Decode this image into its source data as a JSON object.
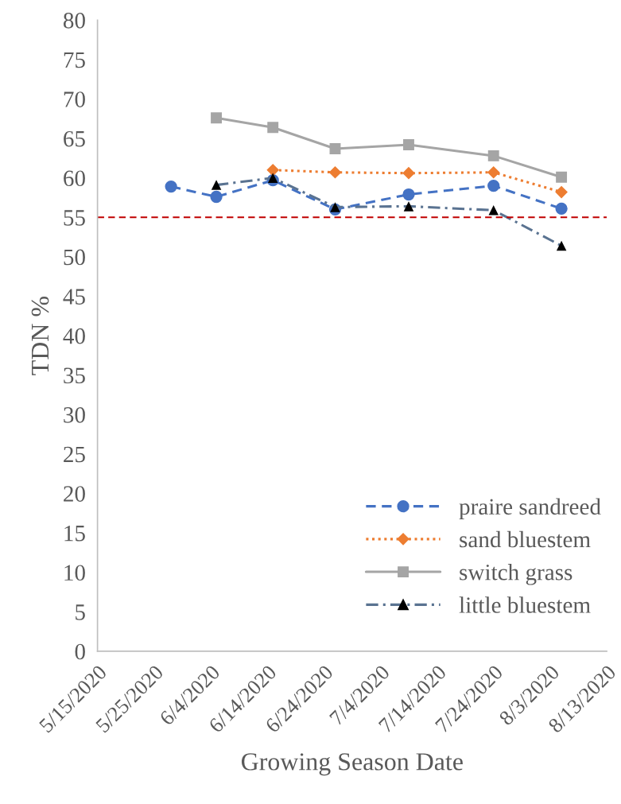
{
  "chart_data": {
    "type": "line",
    "xlabel": "Growing Season Date",
    "ylabel": "TDN %",
    "series": [
      {
        "name": "praire sandreed",
        "color": "#4472c4",
        "marker": "circle",
        "line_style": "dashed",
        "x": [
          "2020-05-28",
          "2020-06-05",
          "2020-06-15",
          "2020-06-26",
          "2020-07-09",
          "2020-07-24",
          "2020-08-05"
        ],
        "values": [
          58.9,
          57.6,
          59.7,
          56.0,
          57.9,
          59.0,
          56.1
        ]
      },
      {
        "name": "sand bluestem",
        "color": "#ed7d31",
        "marker": "diamond",
        "line_style": "dotted",
        "x": [
          "2020-06-15",
          "2020-06-26",
          "2020-07-09",
          "2020-07-24",
          "2020-08-05"
        ],
        "values": [
          61.0,
          60.7,
          60.6,
          60.7,
          58.2
        ]
      },
      {
        "name": "switch grass",
        "color": "#a5a5a5",
        "marker": "square",
        "line_style": "solid",
        "x": [
          "2020-06-05",
          "2020-06-15",
          "2020-06-26",
          "2020-07-09",
          "2020-07-24",
          "2020-08-05"
        ],
        "values": [
          67.6,
          66.4,
          63.7,
          64.2,
          62.8,
          60.1
        ]
      },
      {
        "name": "little bluestem",
        "color": "#5a7391",
        "colors": [
          "#000000",
          "#000000",
          "#000000",
          "#000000",
          "#000000",
          "#000000"
        ],
        "marker": "triangle",
        "line_style": "dashdot",
        "x": [
          "2020-06-05",
          "2020-06-15",
          "2020-06-26",
          "2020-07-09",
          "2020-07-24",
          "2020-08-05"
        ],
        "values": [
          59.1,
          60.0,
          56.3,
          56.4,
          55.9,
          51.4
        ]
      }
    ],
    "ref_lines": [
      {
        "axis": "y",
        "value": 55,
        "color": "#c00000",
        "line_style": "dashed"
      }
    ],
    "xlim": [
      "2020-05-15",
      "2020-08-13"
    ],
    "xticks": [
      {
        "value": "2020-05-15",
        "label": "5/15/2020"
      },
      {
        "value": "2020-05-25",
        "label": "5/25/2020"
      },
      {
        "value": "2020-06-04",
        "label": "6/4/2020"
      },
      {
        "value": "2020-06-14",
        "label": "6/14/2020"
      },
      {
        "value": "2020-06-24",
        "label": "6/24/2020"
      },
      {
        "value": "2020-07-04",
        "label": "7/4/2020"
      },
      {
        "value": "2020-07-14",
        "label": "7/14/2020"
      },
      {
        "value": "2020-07-24",
        "label": "7/24/2020"
      },
      {
        "value": "2020-08-03",
        "label": "8/3/2020"
      },
      {
        "value": "2020-08-13",
        "label": "8/13/2020"
      }
    ],
    "ylim": [
      0,
      80
    ],
    "yticks": [
      0,
      5,
      10,
      15,
      20,
      25,
      30,
      35,
      40,
      45,
      50,
      55,
      60,
      65,
      70,
      75,
      80
    ],
    "grid": false,
    "legend": "bottom right"
  }
}
